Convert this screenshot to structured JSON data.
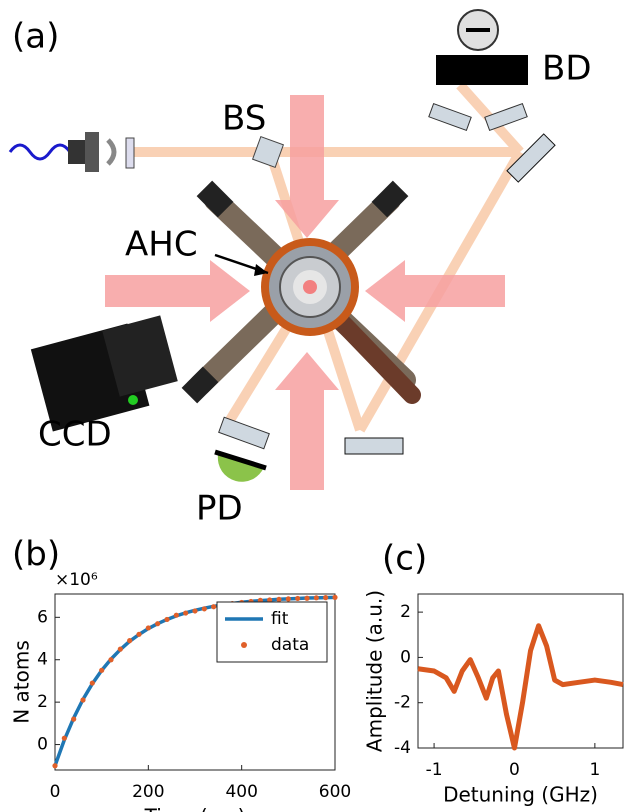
{
  "panel_labels": [
    "(a)",
    "(b)",
    "(c)"
  ],
  "diagram": {
    "labels": {
      "bs": "BS",
      "bd": "BD",
      "ahc": "AHC",
      "ccd": "CCD",
      "pd": "PD"
    }
  },
  "chart_data": [
    {
      "type": "line",
      "multiplier": "×10⁶",
      "xlabel": "Time (ms)",
      "ylabel": "N atoms",
      "x": [
        0,
        20,
        40,
        60,
        80,
        100,
        120,
        140,
        160,
        180,
        200,
        220,
        240,
        260,
        280,
        300,
        320,
        340,
        360,
        380,
        400,
        420,
        440,
        460,
        480,
        500,
        520,
        540,
        560,
        580,
        600
      ],
      "series": [
        {
          "name": "fit",
          "type": "line",
          "color": "#1f77b4",
          "values": [
            -1.0,
            0.22,
            1.25,
            2.13,
            2.87,
            3.5,
            4.03,
            4.48,
            4.87,
            5.19,
            5.47,
            5.7,
            5.9,
            6.07,
            6.21,
            6.33,
            6.43,
            6.52,
            6.59,
            6.65,
            6.71,
            6.75,
            6.79,
            6.82,
            6.85,
            6.87,
            6.89,
            6.91,
            6.92,
            6.93,
            6.94
          ]
        },
        {
          "name": "data",
          "type": "scatter",
          "color": "#e0602a",
          "values": [
            -1.0,
            0.3,
            1.2,
            2.1,
            2.9,
            3.5,
            4.0,
            4.5,
            4.9,
            5.2,
            5.5,
            5.7,
            5.9,
            6.1,
            6.2,
            6.3,
            6.4,
            6.5,
            6.6,
            6.65,
            6.7,
            6.75,
            6.8,
            6.82,
            6.85,
            6.87,
            6.89,
            6.9,
            6.92,
            6.93,
            6.94
          ]
        }
      ],
      "xlim": [
        0,
        600
      ],
      "ylim": [
        -1.2,
        7.1
      ],
      "xticks": [
        0,
        200,
        400,
        600
      ],
      "yticks": [
        0,
        2,
        4,
        6
      ],
      "legend": "upper right"
    },
    {
      "type": "line",
      "xlabel": "Detuning (GHz)",
      "ylabel": "Amplitude (a.u.)",
      "x": [
        -1.2,
        -1.0,
        -0.85,
        -0.75,
        -0.65,
        -0.55,
        -0.45,
        -0.35,
        -0.27,
        -0.2,
        -0.1,
        0,
        0.1,
        0.2,
        0.3,
        0.4,
        0.5,
        0.6,
        0.8,
        1.0,
        1.2,
        1.35
      ],
      "series": [
        {
          "type": "line",
          "color": "#d9581f",
          "values": [
            -0.5,
            -0.6,
            -0.9,
            -1.5,
            -0.6,
            -0.1,
            -0.9,
            -1.8,
            -0.9,
            -0.6,
            -2.5,
            -4.0,
            -2.0,
            0.3,
            1.4,
            0.5,
            -1.0,
            -1.2,
            -1.1,
            -1.0,
            -1.1,
            -1.2
          ]
        }
      ],
      "xlim": [
        -1.2,
        1.35
      ],
      "ylim": [
        -4,
        2.8
      ],
      "xticks": [
        -1,
        0,
        1
      ],
      "yticks": [
        -4,
        -2,
        0,
        2
      ]
    }
  ]
}
